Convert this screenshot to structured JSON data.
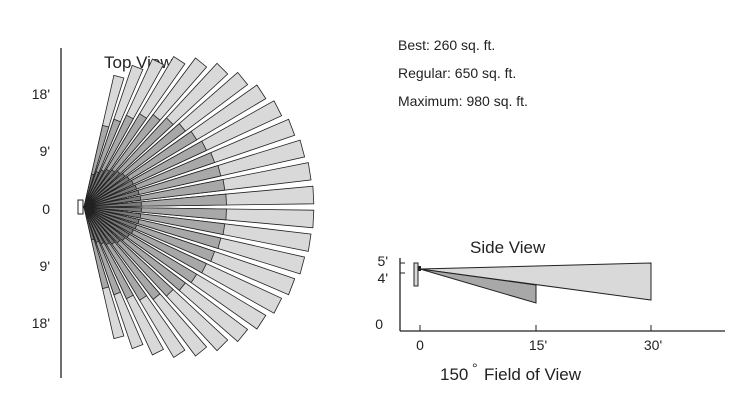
{
  "top_view": {
    "title": "Top View",
    "y_ticks": [
      "18'",
      "9'",
      "0",
      "9'",
      "18'"
    ]
  },
  "coverage": {
    "best": "Best: 260 sq. ft.",
    "regular": "Regular: 650 sq. ft.",
    "maximum": "Maximum: 980 sq. ft."
  },
  "side_view": {
    "title": "Side View",
    "y_ticks": [
      "5'",
      "4'",
      "0"
    ],
    "x_ticks": [
      "0",
      "15'",
      "30'"
    ]
  },
  "field_of_view": {
    "value": "150",
    "degree": "°",
    "label": "Field of View"
  },
  "colors": {
    "light": "#d9d9d9",
    "mid": "#a8a8a8",
    "dark": "#7a7a7a",
    "line": "#222222"
  }
}
